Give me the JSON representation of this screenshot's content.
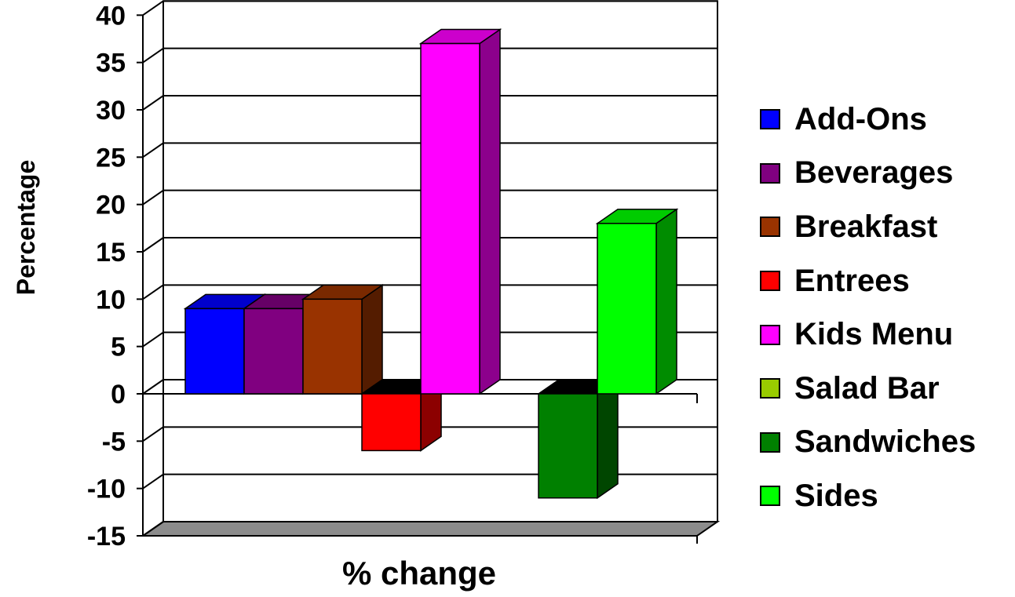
{
  "chart_data": {
    "type": "bar",
    "title": "",
    "xlabel": "% change",
    "ylabel": "Percentage",
    "ylim": [
      -15,
      40
    ],
    "yticks": [
      "40",
      "35",
      "30",
      "25",
      "20",
      "15",
      "10",
      "5",
      "0",
      "-5",
      "-10",
      "-15"
    ],
    "grid": true,
    "legend_position": "right",
    "series": [
      {
        "name": "Add-Ons",
        "value": 9,
        "color": "#0000FF"
      },
      {
        "name": "Beverages",
        "value": 9,
        "color": "#800080"
      },
      {
        "name": "Breakfast",
        "value": 10,
        "color": "#993300"
      },
      {
        "name": "Entrees",
        "value": -6,
        "color": "#FF0000"
      },
      {
        "name": "Kids Menu",
        "value": 37,
        "color": "#FF00FF"
      },
      {
        "name": "Salad Bar",
        "value": 0,
        "color": "#99CC00"
      },
      {
        "name": "Sandwiches",
        "value": -11,
        "color": "#008000"
      },
      {
        "name": "Sides",
        "value": 18,
        "color": "#00FF00"
      }
    ]
  }
}
